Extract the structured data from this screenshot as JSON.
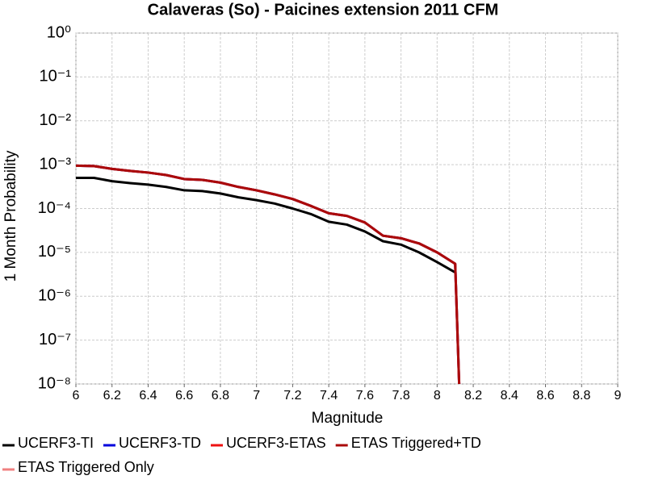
{
  "chart_data": {
    "type": "line",
    "title": "Calaveras (So) - Paicines extension 2011 CFM",
    "x_label": "Magnitude",
    "y_label": "1 Month Probability",
    "log_y": true,
    "grid": true,
    "legend": "bottom",
    "xlim": [
      6,
      9
    ],
    "xticks": [
      6,
      6.2,
      6.4,
      6.6,
      6.8,
      7,
      7.2,
      7.4,
      7.6,
      7.8,
      8,
      8.2,
      8.4,
      8.6,
      8.8,
      9
    ],
    "ylim": [
      1e-08,
      1
    ],
    "yticks": [
      {
        "value": 1e-08,
        "label": "10⁻⁸"
      },
      {
        "value": 1e-07,
        "label": "10⁻⁷"
      },
      {
        "value": 1e-06,
        "label": "10⁻⁶"
      },
      {
        "value": 1e-05,
        "label": "10⁻⁵"
      },
      {
        "value": 0.0001,
        "label": "10⁻⁴"
      },
      {
        "value": 0.001,
        "label": "10⁻³"
      },
      {
        "value": 0.01,
        "label": "10⁻²"
      },
      {
        "value": 0.1,
        "label": "10⁻¹"
      },
      {
        "value": 1,
        "label": "10⁰"
      }
    ],
    "x": [
      6.0,
      6.1,
      6.2,
      6.3,
      6.4,
      6.5,
      6.6,
      6.7,
      6.8,
      6.9,
      7.0,
      7.1,
      7.2,
      7.3,
      7.4,
      7.5,
      7.6,
      7.7,
      7.8,
      7.9,
      8.0,
      8.1,
      8.13
    ],
    "series": [
      {
        "name": "UCERF3-TI",
        "color": "#000000",
        "values": [
          0.0005,
          0.0005,
          0.00042,
          0.00038,
          0.00035,
          0.00031,
          0.00026,
          0.00025,
          0.00022,
          0.00018,
          0.000155,
          0.00013,
          0.0001,
          7.5e-05,
          5e-05,
          4.3e-05,
          3e-05,
          1.8e-05,
          1.5e-05,
          1e-05,
          6e-06,
          3.5e-06,
          null
        ]
      },
      {
        "name": "UCERF3-TD",
        "color": "#0000dd",
        "values": [
          0.00095,
          0.00093,
          0.0008,
          0.00072,
          0.00066,
          0.00058,
          0.00047,
          0.00045,
          0.00039,
          0.00031,
          0.00026,
          0.00021,
          0.000165,
          0.000115,
          7.8e-05,
          6.8e-05,
          4.8e-05,
          2.4e-05,
          2.1e-05,
          1.6e-05,
          1e-05,
          5.5e-06,
          1e-09
        ]
      },
      {
        "name": "UCERF3-ETAS",
        "color": "#ee1111",
        "values": [
          0.00095,
          0.00093,
          0.0008,
          0.00072,
          0.00066,
          0.00058,
          0.00047,
          0.00045,
          0.00039,
          0.00031,
          0.00026,
          0.00021,
          0.000165,
          0.000115,
          7.8e-05,
          6.8e-05,
          4.8e-05,
          2.4e-05,
          2.1e-05,
          1.6e-05,
          1e-05,
          5.5e-06,
          1e-09
        ]
      },
      {
        "name": "ETAS Triggered+TD",
        "color": "#aa0a0a",
        "values": [
          0.00095,
          0.00093,
          0.0008,
          0.00072,
          0.00066,
          0.00058,
          0.00047,
          0.00045,
          0.00039,
          0.00031,
          0.00026,
          0.00021,
          0.000165,
          0.000115,
          7.8e-05,
          6.8e-05,
          4.8e-05,
          2.4e-05,
          2.1e-05,
          1.6e-05,
          1e-05,
          5.5e-06,
          1e-09
        ]
      },
      {
        "name": "ETAS Triggered Only",
        "color": "#f08080",
        "values": [
          null,
          null,
          null,
          null,
          null,
          null,
          null,
          null,
          null,
          null,
          null,
          null,
          null,
          null,
          null,
          null,
          null,
          null,
          null,
          null,
          null,
          null,
          null
        ]
      }
    ]
  }
}
